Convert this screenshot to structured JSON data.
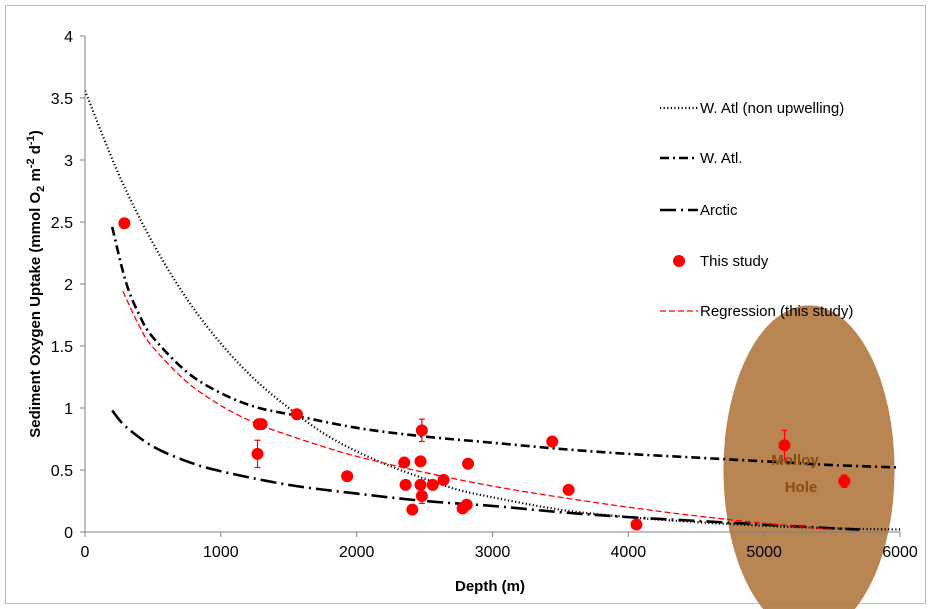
{
  "chart_data": {
    "type": "scatter",
    "title": "",
    "xlabel": "Depth (m)",
    "ylabel": {
      "prefix": "Sediment Oxygen Uptake  (mmol O",
      "sub1": "2",
      "mid": " m",
      "sup1": "-2",
      "mid2": " d",
      "sup2": "-1",
      "suffix": ")"
    },
    "xlim": [
      0,
      6000
    ],
    "ylim": [
      0,
      4
    ],
    "xticks": [
      "0",
      "1000",
      "2000",
      "3000",
      "4000",
      "5000",
      "6000"
    ],
    "yticks": [
      "0",
      "0.5",
      "1",
      "1.5",
      "2",
      "2.5",
      "3",
      "3.5",
      "4"
    ],
    "xtick_values": [
      0,
      1000,
      2000,
      3000,
      4000,
      5000,
      6000
    ],
    "ytick_values": [
      0,
      0.5,
      1,
      1.5,
      2,
      2.5,
      3,
      3.5,
      4
    ],
    "grid": false,
    "legend_position": "right",
    "series": [
      {
        "name": "W. Atl (non upwelling)",
        "kind": "curve",
        "style": "dotted",
        "color": "#000000",
        "x": [
          0,
          250,
          500,
          750,
          1000,
          1250,
          1500,
          1750,
          2000,
          2250,
          2500,
          2750,
          3000,
          3500,
          4000,
          4500,
          5000,
          5500,
          6000
        ],
        "y": [
          3.56,
          2.88,
          2.33,
          1.88,
          1.52,
          1.23,
          1.0,
          0.8,
          0.65,
          0.53,
          0.43,
          0.34,
          0.28,
          0.18,
          0.12,
          0.08,
          0.05,
          0.03,
          0.02
        ]
      },
      {
        "name": "W. Atl.",
        "kind": "curve",
        "style": "dash-dot",
        "color": "#000000",
        "x": [
          200,
          300,
          400,
          500,
          750,
          1000,
          1250,
          1500,
          2000,
          2500,
          3000,
          3500,
          4000,
          4500,
          5000,
          5500,
          6000
        ],
        "y": [
          2.46,
          2.02,
          1.75,
          1.57,
          1.29,
          1.12,
          1.01,
          0.95,
          0.84,
          0.77,
          0.72,
          0.67,
          0.63,
          0.6,
          0.57,
          0.54,
          0.52
        ]
      },
      {
        "name": "Arctic",
        "kind": "curve",
        "style": "long-dash-dot",
        "color": "#000000",
        "x": [
          200,
          300,
          500,
          750,
          1000,
          1500,
          2000,
          2500,
          3000,
          3500,
          4000,
          4500,
          5000,
          5500,
          5700
        ],
        "y": [
          0.98,
          0.85,
          0.69,
          0.57,
          0.49,
          0.38,
          0.31,
          0.25,
          0.21,
          0.16,
          0.12,
          0.09,
          0.06,
          0.03,
          0.02
        ]
      },
      {
        "name": "This study",
        "kind": "points",
        "color": "#ff0000",
        "points": [
          {
            "x": 290,
            "y": 2.49,
            "err": 0
          },
          {
            "x": 1280,
            "y": 0.87,
            "err": 0
          },
          {
            "x": 1300,
            "y": 0.87,
            "err": 0.03
          },
          {
            "x": 1270,
            "y": 0.63,
            "err": 0.11
          },
          {
            "x": 1560,
            "y": 0.95,
            "err": 0
          },
          {
            "x": 1930,
            "y": 0.45,
            "err": 0
          },
          {
            "x": 2350,
            "y": 0.56,
            "err": 0
          },
          {
            "x": 2360,
            "y": 0.38,
            "err": 0
          },
          {
            "x": 2410,
            "y": 0.18,
            "err": 0
          },
          {
            "x": 2470,
            "y": 0.57,
            "err": 0
          },
          {
            "x": 2480,
            "y": 0.82,
            "err": 0.09
          },
          {
            "x": 2470,
            "y": 0.38,
            "err": 0.04
          },
          {
            "x": 2480,
            "y": 0.29,
            "err": 0.06
          },
          {
            "x": 2560,
            "y": 0.38,
            "err": 0
          },
          {
            "x": 2640,
            "y": 0.42,
            "err": 0
          },
          {
            "x": 2780,
            "y": 0.19,
            "err": 0
          },
          {
            "x": 2810,
            "y": 0.22,
            "err": 0
          },
          {
            "x": 2820,
            "y": 0.55,
            "err": 0
          },
          {
            "x": 3440,
            "y": 0.73,
            "err": 0
          },
          {
            "x": 3560,
            "y": 0.34,
            "err": 0
          },
          {
            "x": 4060,
            "y": 0.06,
            "err": 0
          },
          {
            "x": 5150,
            "y": 0.7,
            "err": 0.12
          },
          {
            "x": 5590,
            "y": 0.41,
            "err": 0.05
          }
        ]
      },
      {
        "name": "Regression (this study)",
        "kind": "curve",
        "style": "dashed",
        "color": "#ff0000",
        "x": [
          280,
          400,
          500,
          750,
          1000,
          1250,
          1500,
          1750,
          2000,
          2500,
          3000,
          3500,
          4000,
          4500,
          5000,
          5500
        ],
        "y": [
          1.94,
          1.66,
          1.49,
          1.21,
          1.02,
          0.88,
          0.78,
          0.69,
          0.61,
          0.48,
          0.37,
          0.28,
          0.2,
          0.13,
          0.07,
          0.02
        ]
      }
    ],
    "annotations": [
      {
        "text_line1": "Molloy",
        "text_line2": "Hole",
        "x": 5330,
        "y": 0.5,
        "shape": "ellipse",
        "fill": "#b07840"
      }
    ]
  }
}
